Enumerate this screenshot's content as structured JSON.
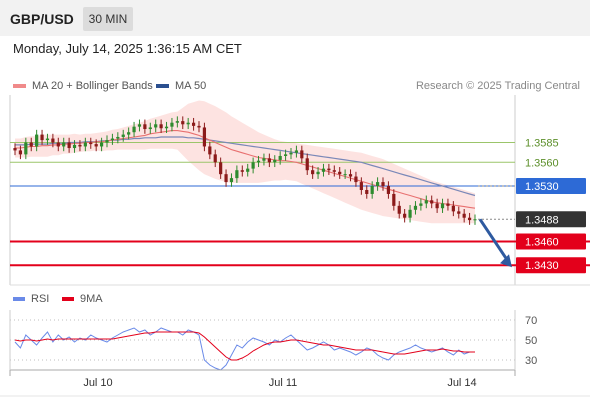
{
  "header": {
    "symbol": "GBP/USD",
    "timeframe": "30 MIN",
    "datetime": "Monday, July 14, 2025 1:36:15 AM CET"
  },
  "legend": {
    "items": [
      {
        "label": "MA 20 + Bollinger Bands",
        "color": "#f08a8a"
      },
      {
        "label": "MA 50",
        "color": "#2b4f8f"
      }
    ],
    "credit": "Research © 2025 Trading Central"
  },
  "colors": {
    "up_candle": "#2e8b2e",
    "down_candle": "#8b1a1a",
    "bollinger_fill": "#fde0de",
    "ma20": "#e87070",
    "ma50": "#7a88b8",
    "resistance": "#9bc56a",
    "pivot": "#2d6ad6",
    "support": "#e3001b",
    "current_price": "#333333",
    "arrow": "#2e5aa0",
    "rsi": "#6a8ae8",
    "rsi_ma": "#e3001b"
  },
  "chart_data": [
    {
      "type": "candlestick",
      "title": "GBP/USD",
      "x_labels": [
        "Jul 10",
        "Jul 11",
        "Jul 14"
      ],
      "ylim": [
        1.3405,
        1.3645
      ],
      "levels": [
        {
          "value": 1.3585,
          "label": "1.3585",
          "kind": "resistance"
        },
        {
          "value": 1.356,
          "label": "1.3560",
          "kind": "resistance"
        },
        {
          "value": 1.353,
          "label": "1.3530",
          "kind": "pivot"
        },
        {
          "value": 1.3488,
          "label": "1.3488",
          "kind": "current"
        },
        {
          "value": 1.346,
          "label": "1.3460",
          "kind": "support"
        },
        {
          "value": 1.343,
          "label": "1.3430",
          "kind": "support"
        }
      ],
      "close": [
        1.3575,
        1.357,
        1.3585,
        1.358,
        1.3595,
        1.3588,
        1.359,
        1.3585,
        1.358,
        1.3585,
        1.3578,
        1.3582,
        1.358,
        1.3585,
        1.3583,
        1.358,
        1.3585,
        1.3588,
        1.359,
        1.3592,
        1.3595,
        1.3598,
        1.3605,
        1.3608,
        1.3602,
        1.3604,
        1.3608,
        1.3603,
        1.3605,
        1.361,
        1.3612,
        1.3608,
        1.361,
        1.3606,
        1.3604,
        1.358,
        1.357,
        1.356,
        1.3545,
        1.3535,
        1.354,
        1.355,
        1.3548,
        1.3552,
        1.356,
        1.3562,
        1.3565,
        1.356,
        1.3563,
        1.3568,
        1.357,
        1.3572,
        1.3575,
        1.3565,
        1.355,
        1.3545,
        1.3548,
        1.3552,
        1.355,
        1.3548,
        1.3545,
        1.3545,
        1.3542,
        1.3535,
        1.3525,
        1.352,
        1.353,
        1.3535,
        1.353,
        1.352,
        1.3505,
        1.3495,
        1.349,
        1.35,
        1.3505,
        1.3508,
        1.3512,
        1.3508,
        1.3502,
        1.3508,
        1.3505,
        1.3498,
        1.3495,
        1.349,
        1.3487,
        1.3488
      ],
      "ma20": [
        1.3578,
        1.3578,
        1.3579,
        1.358,
        1.358,
        1.3581,
        1.3581,
        1.3582,
        1.3582,
        1.3583,
        1.3583,
        1.3584,
        1.3584,
        1.3585,
        1.3585,
        1.3586,
        1.3586,
        1.3587,
        1.3588,
        1.3589,
        1.359,
        1.3591,
        1.3592,
        1.3593,
        1.3594,
        1.3596,
        1.3597,
        1.3598,
        1.3599,
        1.36,
        1.36,
        1.3599,
        1.3598,
        1.3596,
        1.3594,
        1.3591,
        1.3588,
        1.3585,
        1.3582,
        1.3579,
        1.3576,
        1.3574,
        1.3572,
        1.357,
        1.3568,
        1.3566,
        1.3565,
        1.3564,
        1.3563,
        1.3562,
        1.3562,
        1.3561,
        1.356,
        1.3558,
        1.3556,
        1.3554,
        1.3552,
        1.355,
        1.3548,
        1.3546,
        1.3544,
        1.3542,
        1.354,
        1.3538,
        1.3536,
        1.3534,
        1.3532,
        1.353,
        1.3528,
        1.3526,
        1.3524,
        1.3522,
        1.352,
        1.3518,
        1.3516,
        1.3514,
        1.3512,
        1.351,
        1.3509,
        1.3508,
        1.3507,
        1.3506,
        1.3505,
        1.3504,
        1.3503,
        1.3502
      ],
      "ma50": [
        1.3582,
        1.3582,
        1.3582,
        1.3583,
        1.3583,
        1.3583,
        1.3583,
        1.3584,
        1.3584,
        1.3584,
        1.3585,
        1.3585,
        1.3585,
        1.3586,
        1.3586,
        1.3586,
        1.3587,
        1.3587,
        1.3588,
        1.3588,
        1.3589,
        1.3589,
        1.359,
        1.359,
        1.3591,
        1.3591,
        1.3591,
        1.3592,
        1.3592,
        1.3592,
        1.3592,
        1.3592,
        1.3591,
        1.3591,
        1.359,
        1.3589,
        1.3588,
        1.3587,
        1.3586,
        1.3585,
        1.3584,
        1.3583,
        1.3582,
        1.3581,
        1.358,
        1.3579,
        1.3578,
        1.3577,
        1.3576,
        1.3575,
        1.3574,
        1.3573,
        1.3572,
        1.3571,
        1.357,
        1.3569,
        1.3568,
        1.3567,
        1.3566,
        1.3565,
        1.3564,
        1.3563,
        1.3562,
        1.3561,
        1.356,
        1.3558,
        1.3556,
        1.3554,
        1.3552,
        1.355,
        1.3548,
        1.3546,
        1.3544,
        1.3542,
        1.354,
        1.3538,
        1.3536,
        1.3534,
        1.3532,
        1.353,
        1.3528,
        1.3526,
        1.3524,
        1.3522,
        1.352,
        1.3518
      ],
      "bb_width": [
        0.0012,
        0.0012,
        0.0013,
        0.0013,
        0.0013,
        0.0014,
        0.0014,
        0.0013,
        0.0013,
        0.0012,
        0.0012,
        0.0012,
        0.0011,
        0.0011,
        0.0011,
        0.0011,
        0.0012,
        0.0012,
        0.0013,
        0.0013,
        0.0014,
        0.0015,
        0.0016,
        0.0017,
        0.0018,
        0.0019,
        0.002,
        0.0021,
        0.0022,
        0.0023,
        0.0024,
        0.003,
        0.0036,
        0.004,
        0.0044,
        0.0046,
        0.0046,
        0.0046,
        0.0045,
        0.0044,
        0.0042,
        0.004,
        0.0038,
        0.0036,
        0.0034,
        0.0032,
        0.003,
        0.0028,
        0.0026,
        0.0025,
        0.0024,
        0.0024,
        0.0024,
        0.0025,
        0.0026,
        0.0027,
        0.0028,
        0.0029,
        0.003,
        0.0031,
        0.0032,
        0.0033,
        0.0034,
        0.0035,
        0.0036,
        0.0036,
        0.0036,
        0.0036,
        0.0036,
        0.0035,
        0.0034,
        0.0033,
        0.0032,
        0.0031,
        0.003,
        0.0029,
        0.0028,
        0.0027,
        0.0026,
        0.0025,
        0.0024,
        0.0023,
        0.0022,
        0.0021,
        0.002,
        0.0019
      ],
      "forecast_arrow": {
        "from": 1.3488,
        "to": 1.343
      }
    },
    {
      "type": "line",
      "title": "RSI",
      "legend": [
        "RSI",
        "9MA"
      ],
      "y_ticks": [
        70,
        50,
        30
      ],
      "ylim": [
        20,
        80
      ],
      "series": [
        {
          "name": "RSI",
          "values": [
            48,
            42,
            55,
            50,
            45,
            52,
            58,
            48,
            55,
            50,
            53,
            48,
            52,
            50,
            55,
            52,
            50,
            48,
            52,
            55,
            58,
            60,
            62,
            58,
            60,
            55,
            58,
            62,
            60,
            58,
            58,
            55,
            60,
            58,
            55,
            30,
            25,
            22,
            20,
            25,
            35,
            45,
            42,
            48,
            52,
            50,
            48,
            45,
            50,
            48,
            52,
            55,
            50,
            45,
            40,
            42,
            45,
            48,
            45,
            40,
            42,
            40,
            38,
            35,
            38,
            42,
            40,
            35,
            32,
            30,
            35,
            38,
            40,
            42,
            45,
            42,
            40,
            38,
            40,
            42,
            38,
            35,
            40,
            36,
            38,
            38
          ]
        },
        {
          "name": "9MA",
          "values": [
            50,
            49,
            50,
            50,
            49,
            50,
            51,
            50,
            51,
            51,
            51,
            51,
            51,
            51,
            51,
            51,
            51,
            51,
            51,
            52,
            53,
            54,
            55,
            56,
            57,
            57,
            58,
            58,
            58,
            58,
            58,
            58,
            58,
            58,
            57,
            53,
            48,
            43,
            38,
            33,
            30,
            30,
            32,
            35,
            39,
            42,
            45,
            47,
            48,
            48,
            49,
            50,
            50,
            49,
            48,
            47,
            46,
            45,
            45,
            44,
            43,
            42,
            41,
            40,
            40,
            40,
            40,
            39,
            38,
            37,
            36,
            36,
            36,
            37,
            38,
            39,
            40,
            40,
            40,
            41,
            40,
            39,
            39,
            38,
            38,
            38
          ]
        }
      ]
    }
  ]
}
